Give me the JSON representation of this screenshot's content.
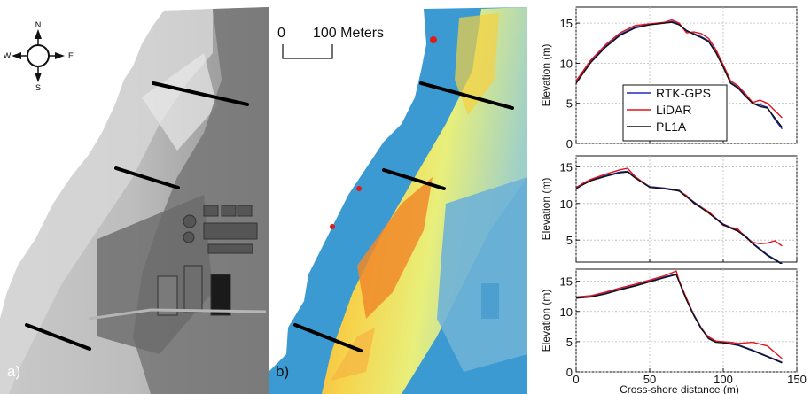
{
  "panel_a": {
    "label": "a)",
    "compass": {
      "n": "N",
      "s": "S",
      "e": "E",
      "w": "W"
    }
  },
  "panel_b": {
    "label": "b)",
    "scale_bar": {
      "start": "0",
      "end": "100 Meters"
    }
  },
  "colors": {
    "rtk_gps": "#1f2fb8",
    "lidar": "#e0141c",
    "pl1a": "#111111",
    "water": "#3b9ad2",
    "transect": "#000000"
  },
  "chart_data": [
    {
      "type": "line",
      "ylabel": "Elevation (m)",
      "xlim": [
        0,
        150
      ],
      "ylim": [
        0,
        17
      ],
      "yticks": [
        0,
        5,
        10,
        15
      ],
      "xticks": [
        0,
        50,
        100,
        150
      ],
      "show_xticklabels": false,
      "grid": true,
      "legend_position": "lower-left",
      "series": [
        {
          "name": "RTK-GPS",
          "color": "#1f2fb8",
          "x": [
            0,
            10,
            20,
            30,
            40,
            50,
            60,
            65,
            70,
            75,
            80,
            85,
            90,
            95,
            100,
            105,
            110,
            115,
            120,
            125,
            130,
            135,
            140
          ],
          "y": [
            7.6,
            10.2,
            12.1,
            13.6,
            14.5,
            14.8,
            15.0,
            15.2,
            14.9,
            14.0,
            13.7,
            13.3,
            12.8,
            11.4,
            9.6,
            7.6,
            7.0,
            6.0,
            5.0,
            4.8,
            4.5,
            3.0,
            1.8
          ]
        },
        {
          "name": "LiDAR",
          "color": "#e0141c",
          "x": [
            0,
            10,
            20,
            30,
            40,
            50,
            60,
            65,
            70,
            75,
            80,
            85,
            90,
            95,
            100,
            105,
            110,
            115,
            120,
            125,
            130,
            135,
            140
          ],
          "y": [
            7.8,
            10.4,
            12.3,
            13.8,
            14.7,
            14.9,
            15.1,
            15.4,
            15.0,
            13.8,
            13.9,
            13.7,
            13.1,
            11.7,
            9.8,
            7.8,
            7.2,
            6.2,
            5.1,
            5.4,
            5.0,
            4.1,
            3.2
          ]
        },
        {
          "name": "PL1A",
          "color": "#111111",
          "x": [
            0,
            10,
            20,
            30,
            40,
            50,
            60,
            65,
            70,
            75,
            80,
            85,
            90,
            95,
            100,
            105,
            110,
            115,
            120,
            125,
            130,
            135,
            140
          ],
          "y": [
            7.5,
            10.1,
            12.0,
            13.5,
            14.4,
            14.8,
            15.0,
            15.1,
            14.8,
            14.1,
            13.6,
            13.2,
            12.7,
            11.3,
            9.5,
            7.5,
            6.9,
            5.9,
            5.0,
            4.6,
            4.4,
            3.2,
            2.0
          ]
        }
      ]
    },
    {
      "type": "line",
      "ylabel": "Elevation (m)",
      "xlim": [
        0,
        150
      ],
      "ylim": [
        2,
        16.5
      ],
      "yticks": [
        5,
        10,
        15
      ],
      "xticks": [
        0,
        50,
        100,
        150
      ],
      "show_xticklabels": false,
      "grid": true,
      "series": [
        {
          "name": "RTK-GPS",
          "color": "#1f2fb8",
          "x": [
            0,
            5,
            10,
            20,
            30,
            35,
            40,
            50,
            60,
            70,
            75,
            80,
            90,
            100,
            110,
            115,
            120,
            125,
            130,
            135,
            140
          ],
          "y": [
            12.2,
            12.7,
            13.2,
            13.8,
            14.3,
            14.4,
            13.6,
            12.3,
            12.1,
            11.8,
            11.0,
            10.2,
            8.8,
            7.2,
            6.3,
            5.6,
            4.6,
            3.8,
            3.0,
            2.4,
            1.8
          ]
        },
        {
          "name": "LiDAR",
          "color": "#e0141c",
          "x": [
            0,
            5,
            10,
            20,
            30,
            35,
            40,
            50,
            60,
            70,
            75,
            80,
            90,
            100,
            110,
            115,
            120,
            125,
            130,
            135,
            140
          ],
          "y": [
            12.1,
            12.8,
            13.3,
            14.0,
            14.6,
            14.8,
            13.7,
            12.2,
            12.0,
            11.7,
            11.1,
            10.0,
            8.9,
            7.0,
            6.5,
            5.4,
            4.7,
            4.5,
            4.6,
            4.9,
            4.2
          ]
        },
        {
          "name": "PL1A",
          "color": "#111111",
          "x": [
            0,
            5,
            10,
            20,
            30,
            35,
            40,
            50,
            60,
            70,
            75,
            80,
            90,
            100,
            110,
            115,
            120,
            125,
            130,
            135,
            140
          ],
          "y": [
            12.0,
            12.6,
            13.1,
            13.7,
            14.2,
            14.3,
            13.5,
            12.2,
            12.0,
            11.7,
            10.9,
            10.1,
            8.7,
            7.1,
            6.2,
            5.5,
            4.5,
            3.7,
            2.9,
            2.3,
            1.7
          ]
        }
      ]
    },
    {
      "type": "line",
      "ylabel": "Elevation (m)",
      "xlabel": "Cross-shore distance (m)",
      "xlim": [
        0,
        150
      ],
      "ylim": [
        0,
        17
      ],
      "yticks": [
        0,
        5,
        10,
        15
      ],
      "xticks": [
        0,
        50,
        100,
        150
      ],
      "show_xticklabels": true,
      "grid": true,
      "series": [
        {
          "name": "RTK-GPS",
          "color": "#1f2fb8",
          "x": [
            0,
            10,
            20,
            30,
            40,
            50,
            60,
            65,
            68,
            70,
            75,
            80,
            85,
            90,
            95,
            100,
            105,
            110,
            120,
            130,
            140
          ],
          "y": [
            12.3,
            12.5,
            13.0,
            13.7,
            14.3,
            15.0,
            15.7,
            16.0,
            16.2,
            15.0,
            12.0,
            9.5,
            7.3,
            5.6,
            5.0,
            4.9,
            4.7,
            4.5,
            3.6,
            2.6,
            1.6
          ]
        },
        {
          "name": "LiDAR",
          "color": "#e0141c",
          "x": [
            0,
            10,
            20,
            30,
            40,
            50,
            60,
            65,
            68,
            70,
            75,
            80,
            85,
            90,
            95,
            100,
            105,
            110,
            120,
            130,
            140
          ],
          "y": [
            12.4,
            12.6,
            13.2,
            13.9,
            14.5,
            15.2,
            15.9,
            16.4,
            16.7,
            15.1,
            12.2,
            9.4,
            7.1,
            5.8,
            5.1,
            5.0,
            4.9,
            4.7,
            4.9,
            4.3,
            2.2
          ]
        },
        {
          "name": "PL1A",
          "color": "#111111",
          "x": [
            0,
            10,
            20,
            30,
            40,
            50,
            60,
            65,
            68,
            70,
            75,
            80,
            85,
            90,
            95,
            100,
            105,
            110,
            120,
            130,
            140
          ],
          "y": [
            12.2,
            12.4,
            12.9,
            13.6,
            14.2,
            14.9,
            15.6,
            15.9,
            16.1,
            14.9,
            11.9,
            9.3,
            7.2,
            5.5,
            4.9,
            4.8,
            4.6,
            4.4,
            3.5,
            2.5,
            1.5
          ]
        }
      ]
    }
  ]
}
